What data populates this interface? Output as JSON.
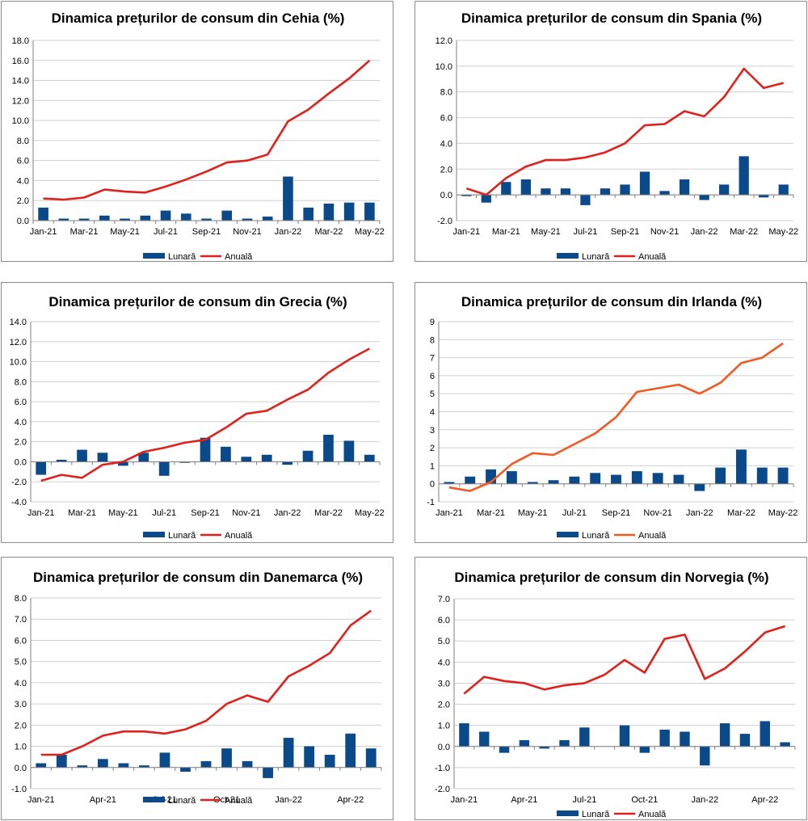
{
  "colors": {
    "bar": "#0a4a8a",
    "line_red": "#e0201b",
    "line_orange": "#f05a22",
    "grid": "#d0d0d0",
    "axis": "#808080"
  },
  "legend": {
    "monthly": "Lunară",
    "annual": "Anuală"
  },
  "chart_data": [
    {
      "type": "bar+line",
      "title": "Dinamica prețurilor de consum din Cehia (%)",
      "categories": [
        "Jan-21",
        "Feb-21",
        "Mar-21",
        "Apr-21",
        "May-21",
        "Jun-21",
        "Jul-21",
        "Aug-21",
        "Sep-21",
        "Oct-21",
        "Nov-21",
        "Dec-21",
        "Jan-22",
        "Feb-22",
        "Mar-22",
        "Apr-22",
        "May-22"
      ],
      "tick_labels": [
        "Jan-21",
        "",
        "Mar-21",
        "",
        "May-21",
        "",
        "Jul-21",
        "",
        "Sep-21",
        "",
        "Nov-21",
        "",
        "Jan-22",
        "",
        "Mar-22",
        "",
        "May-22"
      ],
      "y_ticks": [
        "0.0",
        "2.0",
        "4.0",
        "6.0",
        "8.0",
        "10.0",
        "12.0",
        "14.0",
        "16.0",
        "18.0"
      ],
      "ylim": [
        0,
        18
      ],
      "line_color": "red",
      "series": [
        {
          "name": "Lunară",
          "kind": "bar",
          "values": [
            1.3,
            0.2,
            0.2,
            0.5,
            0.2,
            0.5,
            1.0,
            0.7,
            0.2,
            1.0,
            0.2,
            0.4,
            4.4,
            1.3,
            1.7,
            1.8,
            1.8
          ]
        },
        {
          "name": "Anuală",
          "kind": "line",
          "values": [
            2.2,
            2.1,
            2.3,
            3.1,
            2.9,
            2.8,
            3.4,
            4.1,
            4.9,
            5.8,
            6.0,
            6.6,
            9.9,
            11.1,
            12.7,
            14.2,
            16.0
          ]
        }
      ]
    },
    {
      "type": "bar+line",
      "title": "Dinamica prețurilor de consum din Spania (%)",
      "categories": [
        "Jan-21",
        "Feb-21",
        "Mar-21",
        "Apr-21",
        "May-21",
        "Jun-21",
        "Jul-21",
        "Aug-21",
        "Sep-21",
        "Oct-21",
        "Nov-21",
        "Dec-21",
        "Jan-22",
        "Feb-22",
        "Mar-22",
        "Apr-22",
        "May-22"
      ],
      "tick_labels": [
        "Jan-21",
        "",
        "Mar-21",
        "",
        "May-21",
        "",
        "Jul-21",
        "",
        "Sep-21",
        "",
        "Nov-21",
        "",
        "Jan-22",
        "",
        "Mar-22",
        "",
        "May-22"
      ],
      "y_ticks": [
        "-2.0",
        "0.0",
        "2.0",
        "4.0",
        "6.0",
        "8.0",
        "10.0",
        "12.0"
      ],
      "ylim": [
        -2,
        12
      ],
      "line_color": "red",
      "series": [
        {
          "name": "Lunară",
          "kind": "bar",
          "values": [
            -0.1,
            -0.6,
            1.0,
            1.2,
            0.5,
            0.5,
            -0.8,
            0.5,
            0.8,
            1.8,
            0.3,
            1.2,
            -0.4,
            0.8,
            3.0,
            -0.2,
            0.8
          ]
        },
        {
          "name": "Anuală",
          "kind": "line",
          "values": [
            0.5,
            0.0,
            1.3,
            2.2,
            2.7,
            2.7,
            2.9,
            3.3,
            4.0,
            5.4,
            5.5,
            6.5,
            6.1,
            7.6,
            9.8,
            8.3,
            8.7
          ]
        }
      ]
    },
    {
      "type": "bar+line",
      "title": "Dinamica prețurilor de consum din Grecia (%)",
      "categories": [
        "Jan-21",
        "Feb-21",
        "Mar-21",
        "Apr-21",
        "May-21",
        "Jun-21",
        "Jul-21",
        "Aug-21",
        "Sep-21",
        "Oct-21",
        "Nov-21",
        "Dec-21",
        "Jan-22",
        "Feb-22",
        "Mar-22",
        "Apr-22",
        "May-22"
      ],
      "tick_labels": [
        "Jan-21",
        "",
        "Mar-21",
        "",
        "May-21",
        "",
        "Jul-21",
        "",
        "Sep-21",
        "",
        "Nov-21",
        "",
        "Jan-22",
        "",
        "Mar-22",
        "",
        "May-22"
      ],
      "y_ticks": [
        "-4.0",
        "-2.0",
        "0.0",
        "2.0",
        "4.0",
        "6.0",
        "8.0",
        "10.0",
        "12.0",
        "14.0"
      ],
      "ylim": [
        -4,
        14
      ],
      "line_color": "red",
      "series": [
        {
          "name": "Lunară",
          "kind": "bar",
          "values": [
            -1.3,
            0.2,
            1.2,
            0.9,
            -0.4,
            0.9,
            -1.4,
            -0.1,
            2.4,
            1.5,
            0.5,
            0.7,
            -0.3,
            1.1,
            2.7,
            2.1,
            0.7
          ]
        },
        {
          "name": "Anuală",
          "kind": "line",
          "values": [
            -1.9,
            -1.3,
            -1.6,
            -0.3,
            0.0,
            1.0,
            1.4,
            1.9,
            2.2,
            3.4,
            4.8,
            5.1,
            6.2,
            7.2,
            8.9,
            10.2,
            11.3
          ]
        }
      ]
    },
    {
      "type": "bar+line",
      "title": "Dinamica prețurilor de consum din Irlanda (%)",
      "categories": [
        "Jan-21",
        "Feb-21",
        "Mar-21",
        "Apr-21",
        "May-21",
        "Jun-21",
        "Jul-21",
        "Aug-21",
        "Sep-21",
        "Oct-21",
        "Nov-21",
        "Dec-21",
        "Jan-22",
        "Feb-22",
        "Mar-22",
        "Apr-22",
        "May-22"
      ],
      "tick_labels": [
        "Jan-21",
        "",
        "Mar-21",
        "",
        "May-21",
        "",
        "Jul-21",
        "",
        "Sep-21",
        "",
        "Nov-21",
        "",
        "Jan-22",
        "",
        "Mar-22",
        "",
        "May-22"
      ],
      "y_ticks": [
        "-1",
        "0",
        "1",
        "2",
        "3",
        "4",
        "5",
        "6",
        "7",
        "8",
        "9"
      ],
      "ylim": [
        -1,
        9
      ],
      "line_color": "orange",
      "series": [
        {
          "name": "Lunară",
          "kind": "bar",
          "values": [
            0.1,
            0.4,
            0.8,
            0.7,
            0.1,
            0.2,
            0.4,
            0.6,
            0.5,
            0.7,
            0.6,
            0.5,
            -0.4,
            0.9,
            1.9,
            0.9,
            0.9
          ]
        },
        {
          "name": "Anuală",
          "kind": "line",
          "values": [
            -0.2,
            -0.4,
            0.1,
            1.1,
            1.7,
            1.6,
            2.2,
            2.8,
            3.7,
            5.1,
            5.3,
            5.5,
            5.0,
            5.6,
            6.7,
            7.0,
            7.8
          ]
        }
      ]
    },
    {
      "type": "bar+line",
      "title": "Dinamica prețurilor de consum din Danemarca (%)",
      "categories": [
        "Jan-21",
        "Feb-21",
        "Mar-21",
        "Apr-21",
        "May-21",
        "Jun-21",
        "Jul-21",
        "Aug-21",
        "Sep-21",
        "Oct-21",
        "Nov-21",
        "Dec-21",
        "Jan-22",
        "Feb-22",
        "Mar-22",
        "Apr-22",
        "May-22"
      ],
      "tick_labels": [
        "Jan-21",
        "",
        "",
        "Apr-21",
        "",
        "",
        "Jul-21",
        "",
        "",
        "Oct-21",
        "",
        "",
        "Jan-22",
        "",
        "",
        "Apr-22",
        ""
      ],
      "y_ticks": [
        "-1.0",
        "0.0",
        "1.0",
        "2.0",
        "3.0",
        "4.0",
        "5.0",
        "6.0",
        "7.0",
        "8.0"
      ],
      "ylim": [
        -1,
        8
      ],
      "line_color": "red",
      "series": [
        {
          "name": "Lunară",
          "kind": "bar",
          "values": [
            0.2,
            0.6,
            0.1,
            0.4,
            0.2,
            0.1,
            0.7,
            -0.2,
            0.3,
            0.9,
            0.3,
            -0.5,
            1.4,
            1.0,
            0.6,
            1.6,
            0.9
          ]
        },
        {
          "name": "Anuală",
          "kind": "line",
          "values": [
            0.6,
            0.6,
            1.0,
            1.5,
            1.7,
            1.7,
            1.6,
            1.8,
            2.2,
            3.0,
            3.4,
            3.1,
            4.3,
            4.8,
            5.4,
            6.7,
            7.4
          ]
        }
      ]
    },
    {
      "type": "bar+line",
      "title": "Dinamica prețurilor de consum din Norvegia (%)",
      "categories": [
        "Jan-21",
        "Feb-21",
        "Mar-21",
        "Apr-21",
        "May-21",
        "Jun-21",
        "Jul-21",
        "Aug-21",
        "Sep-21",
        "Oct-21",
        "Nov-21",
        "Dec-21",
        "Jan-22",
        "Feb-22",
        "Mar-22",
        "Apr-22",
        "May-22"
      ],
      "tick_labels": [
        "Jan-21",
        "",
        "",
        "Apr-21",
        "",
        "",
        "Jul-21",
        "",
        "",
        "Oct-21",
        "",
        "",
        "Jan-22",
        "",
        "",
        "Apr-22",
        ""
      ],
      "y_ticks": [
        "-2.0",
        "-1.0",
        "0.0",
        "1.0",
        "2.0",
        "3.0",
        "4.0",
        "5.0",
        "6.0",
        "7.0"
      ],
      "ylim": [
        -2,
        7
      ],
      "line_color": "red",
      "series": [
        {
          "name": "Lunară",
          "kind": "bar",
          "values": [
            1.1,
            0.7,
            -0.3,
            0.3,
            -0.1,
            0.3,
            0.9,
            0.0,
            1.0,
            -0.3,
            0.8,
            0.7,
            -0.9,
            1.1,
            0.6,
            1.2,
            0.2
          ]
        },
        {
          "name": "Anuală",
          "kind": "line",
          "values": [
            2.5,
            3.3,
            3.1,
            3.0,
            2.7,
            2.9,
            3.0,
            3.4,
            4.1,
            3.5,
            5.1,
            5.3,
            3.2,
            3.7,
            4.5,
            5.4,
            5.7
          ]
        }
      ]
    }
  ]
}
